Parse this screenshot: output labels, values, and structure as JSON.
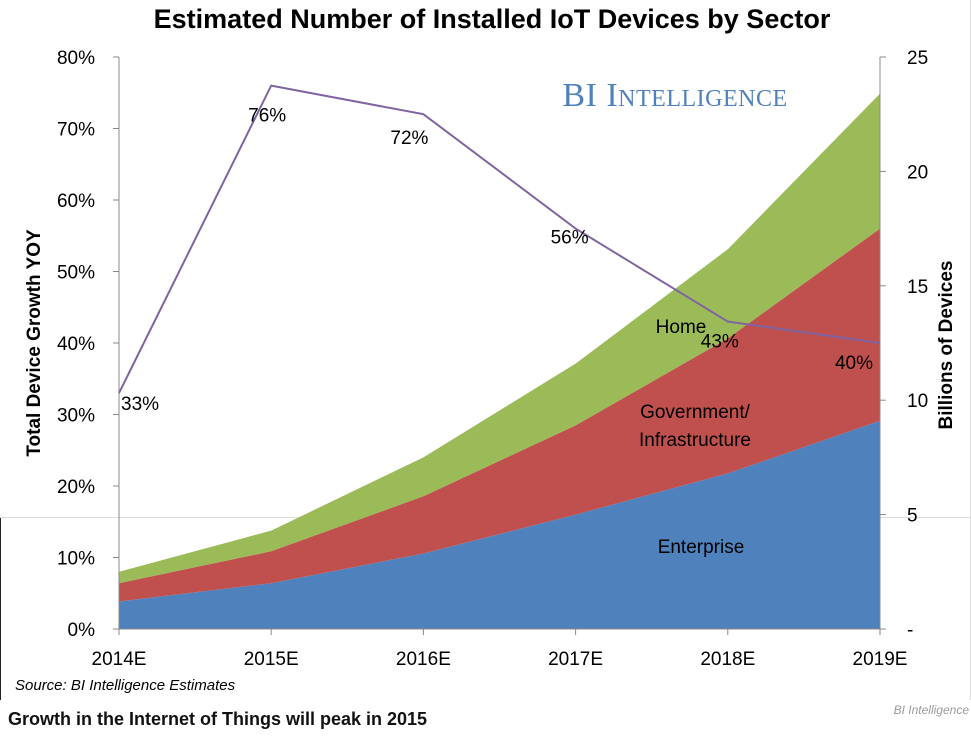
{
  "chart_data": {
    "type": "area",
    "title": "Estimated Number of Installed IoT Devices by Sector",
    "watermark": "BI Intelligence",
    "categories": [
      "2014E",
      "2015E",
      "2016E",
      "2017E",
      "2018E",
      "2019E"
    ],
    "left_axis": {
      "label": "Total Device Growth YOY",
      "range": [
        0,
        80
      ],
      "ticks": [
        "0%",
        "10%",
        "20%",
        "30%",
        "40%",
        "50%",
        "60%",
        "70%",
        "80%"
      ]
    },
    "right_axis": {
      "label": "Billions of Devices",
      "range": [
        0,
        25
      ],
      "ticks": [
        "-",
        "5",
        "10",
        "15",
        "20",
        "25"
      ]
    },
    "stacked_series": [
      {
        "name": "Enterprise",
        "color": "#4F81BD",
        "values": [
          1.2,
          2.0,
          3.3,
          5.0,
          6.8,
          9.1
        ]
      },
      {
        "name": "Government/ Infrastructure",
        "color": "#C0504D",
        "values": [
          0.8,
          1.4,
          2.5,
          3.9,
          5.9,
          8.4
        ]
      },
      {
        "name": "Home",
        "color": "#9BBB59",
        "values": [
          0.5,
          0.9,
          1.7,
          2.7,
          3.9,
          5.9
        ]
      }
    ],
    "series_labels": [
      "Home",
      "Government/",
      "Infrastructure",
      "Enterprise"
    ],
    "growth_line": {
      "color": "#8064A2",
      "values": [
        33,
        76,
        72,
        56,
        43,
        40
      ],
      "labels": [
        "33%",
        "76%",
        "72%",
        "56%",
        "43%",
        "40%"
      ]
    },
    "source": "Source: BI Intelligence Estimates",
    "grid": false,
    "legend": "none"
  },
  "caption": {
    "text": "Growth in the Internet of Things will peak in 2015",
    "credit": "BI Intelligence"
  }
}
